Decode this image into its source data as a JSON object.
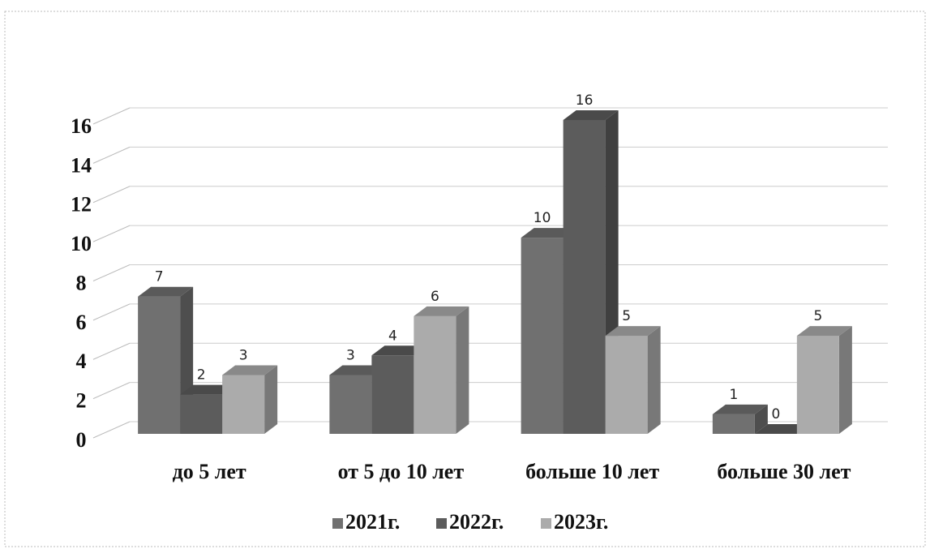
{
  "chart_data": {
    "type": "bar3d",
    "categories": [
      "до 5 лет",
      "от 5 до 10 лет",
      "больше 10 лет",
      "больше 30 лет"
    ],
    "series": [
      {
        "name": "2021г.",
        "color": "#707070",
        "values": [
          7,
          3,
          10,
          1
        ]
      },
      {
        "name": "2022г.",
        "color": "#5c5c5c",
        "values": [
          2,
          4,
          16,
          0
        ]
      },
      {
        "name": "2023г.",
        "color": "#ababab",
        "values": [
          3,
          6,
          5,
          5
        ]
      }
    ],
    "ylim": [
      0,
      16
    ],
    "yticks": [
      0,
      2,
      4,
      6,
      8,
      10,
      12,
      14,
      16
    ],
    "grid": true,
    "legend": "bottom"
  }
}
